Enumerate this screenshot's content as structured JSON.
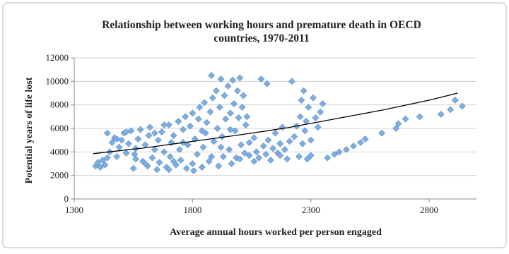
{
  "chart_data": {
    "type": "scatter",
    "title": "Relationship between working hours and premature death in OECD countries, 1970-2011",
    "x_label": "Average annual hours worked per person engaged",
    "y_label": "Potential years of life lost",
    "xlim": [
      1300,
      3000
    ],
    "xticks": [
      1300,
      1800,
      2300,
      2800
    ],
    "ylim": [
      0,
      12000
    ],
    "yticks": [
      0,
      2000,
      4000,
      6000,
      8000,
      10000,
      12000
    ],
    "grid": true,
    "series": [
      {
        "color": "#7fadde",
        "mode": "markers",
        "x": [
          1390,
          1400,
          1410,
          1420,
          1430,
          1440,
          1450,
          1460,
          1470,
          1480,
          1490,
          1500,
          1510,
          1520,
          1530,
          1540,
          1550,
          1555,
          1560,
          1570,
          1580,
          1590,
          1600,
          1610,
          1615,
          1620,
          1630,
          1640,
          1650,
          1655,
          1660,
          1670,
          1680,
          1690,
          1700,
          1705,
          1710,
          1720,
          1730,
          1740,
          1745,
          1750,
          1760,
          1770,
          1775,
          1780,
          1790,
          1800,
          1805,
          1810,
          1820,
          1825,
          1830,
          1840,
          1845,
          1850,
          1855,
          1860,
          1870,
          1875,
          1880,
          1885,
          1890,
          1900,
          1905,
          1910,
          1915,
          1920,
          1925,
          1930,
          1935,
          1940,
          1950,
          1955,
          1960,
          1965,
          1970,
          1975,
          1980,
          1985,
          1990,
          1995,
          2000,
          2005,
          2010,
          2015,
          2020,
          2025,
          2030,
          2040,
          2060,
          2070,
          2080,
          2090,
          2100,
          2110,
          2115,
          2120,
          2130,
          2140,
          2150,
          2160,
          2170,
          2180,
          2190,
          2200,
          2210,
          2220,
          2230,
          2240,
          2250,
          2255,
          2260,
          2265,
          2270,
          2275,
          2280,
          2285,
          2290,
          2300,
          2310,
          2320,
          2330,
          2340,
          2350,
          2370,
          2400,
          2420,
          2450,
          2480,
          2510,
          2530,
          2600,
          2660,
          2670,
          2700,
          2760,
          2850,
          2890,
          2910,
          2940,
          1440,
          1480,
          1520,
          1560,
          1600,
          1640,
          1680,
          1720,
          1760,
          1800,
          1840,
          1880,
          1920,
          1960,
          2000,
          2040,
          2060,
          2170,
          2300,
          1700
        ],
        "values": [
          2800,
          3100,
          2700,
          3300,
          2900,
          3500,
          4000,
          4800,
          5200,
          3600,
          4400,
          5000,
          5600,
          3900,
          4700,
          5800,
          2600,
          3800,
          4300,
          5100,
          5900,
          3200,
          4600,
          2800,
          5400,
          6100,
          3500,
          4200,
          2500,
          5000,
          3100,
          5700,
          4000,
          2700,
          6300,
          3600,
          4800,
          5400,
          2900,
          6600,
          4200,
          3300,
          5900,
          7000,
          2600,
          4600,
          6200,
          7300,
          2400,
          5100,
          3800,
          6800,
          7800,
          2700,
          4400,
          8200,
          5600,
          6500,
          3200,
          7400,
          10500,
          8600,
          4900,
          9200,
          6000,
          2800,
          7800,
          10200,
          5300,
          3600,
          8800,
          6800,
          9600,
          4200,
          7300,
          3000,
          10100,
          8100,
          5800,
          3500,
          9200,
          6900,
          10300,
          4600,
          7800,
          8800,
          3900,
          6300,
          7000,
          3700,
          3200,
          4000,
          3500,
          10200,
          4500,
          3800,
          9800,
          5000,
          3300,
          4300,
          5600,
          3900,
          4700,
          6100,
          4200,
          3400,
          4900,
          10000,
          5300,
          6200,
          3600,
          7000,
          8400,
          4700,
          9200,
          5800,
          6600,
          3400,
          7800,
          5000,
          8600,
          6900,
          6100,
          7400,
          8100,
          3500,
          3800,
          4000,
          4200,
          4500,
          4800,
          5100,
          5600,
          6000,
          6400,
          6800,
          7000,
          7200,
          7600,
          8400,
          7900,
          5600,
          5100,
          5700,
          3400,
          3000,
          5600,
          6300,
          3200,
          4800,
          3000,
          5800,
          3600,
          4400,
          5900,
          3400,
          4800,
          5200,
          3700,
          3700,
          2500
        ]
      },
      {
        "color": "#000000",
        "mode": "line",
        "x": [
          1380,
          1600,
          1800,
          2000,
          2200,
          2400,
          2600,
          2800,
          2920
        ],
        "values": [
          3850,
          4350,
          4900,
          5450,
          6050,
          6800,
          7550,
          8400,
          9000
        ]
      }
    ]
  }
}
